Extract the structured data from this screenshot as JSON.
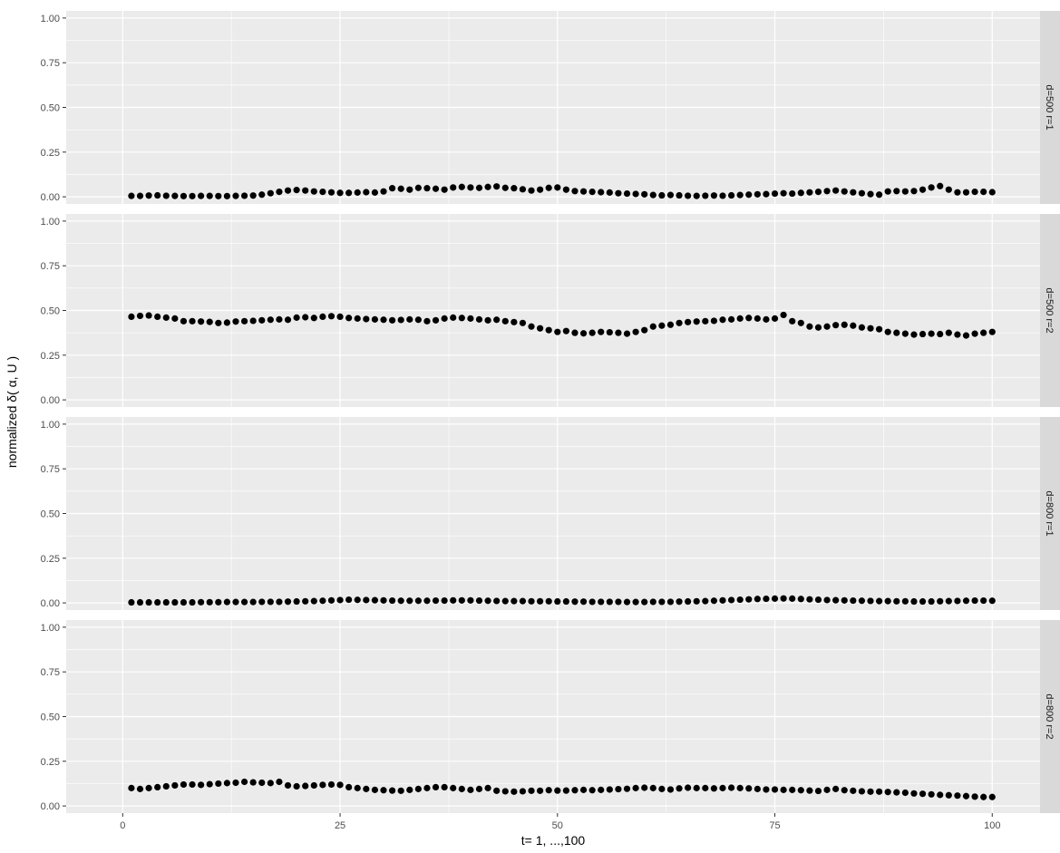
{
  "chart_data": {
    "type": "scatter",
    "xlabel": "t= 1, ...,100",
    "ylabel": "normalized δ( α, U )",
    "xlim": [
      -6.5,
      105.5
    ],
    "ylim": [
      -0.04,
      1.04
    ],
    "x_ticks": [
      0,
      25,
      50,
      75,
      100
    ],
    "x_tick_labels": [
      "0",
      "25",
      "50",
      "75",
      "100"
    ],
    "y_ticks": [
      0,
      0.25,
      0.5,
      0.75,
      1
    ],
    "y_tick_labels": [
      "0.00",
      "0.25",
      "0.50",
      "0.75",
      "1.00"
    ],
    "grid": true,
    "facet_layout": "rows",
    "colors": {
      "panel_background": "#ebebeb",
      "grid": "#ffffff",
      "strip_background": "#d9d9d9",
      "points": "#000000"
    },
    "panels": [
      {
        "strip_label": "d=500 r=1",
        "y": [
          0.005,
          0.005,
          0.007,
          0.008,
          0.006,
          0.005,
          0.004,
          0.004,
          0.005,
          0.005,
          0.004,
          0.004,
          0.005,
          0.006,
          0.007,
          0.012,
          0.02,
          0.028,
          0.035,
          0.038,
          0.035,
          0.03,
          0.028,
          0.025,
          0.022,
          0.022,
          0.024,
          0.026,
          0.024,
          0.03,
          0.048,
          0.045,
          0.04,
          0.05,
          0.048,
          0.045,
          0.04,
          0.052,
          0.055,
          0.052,
          0.05,
          0.055,
          0.058,
          0.05,
          0.048,
          0.042,
          0.035,
          0.04,
          0.05,
          0.052,
          0.04,
          0.032,
          0.03,
          0.028,
          0.026,
          0.024,
          0.02,
          0.018,
          0.016,
          0.014,
          0.01,
          0.008,
          0.01,
          0.008,
          0.006,
          0.005,
          0.006,
          0.007,
          0.006,
          0.008,
          0.01,
          0.012,
          0.014,
          0.015,
          0.018,
          0.02,
          0.018,
          0.022,
          0.025,
          0.028,
          0.032,
          0.035,
          0.03,
          0.025,
          0.02,
          0.015,
          0.012,
          0.03,
          0.032,
          0.03,
          0.032,
          0.04,
          0.052,
          0.06,
          0.04,
          0.025,
          0.025,
          0.028,
          0.028,
          0.026
        ]
      },
      {
        "strip_label": "d=500 r=2",
        "y": [
          0.465,
          0.47,
          0.472,
          0.465,
          0.46,
          0.455,
          0.44,
          0.44,
          0.438,
          0.436,
          0.43,
          0.432,
          0.438,
          0.44,
          0.442,
          0.445,
          0.448,
          0.45,
          0.448,
          0.46,
          0.462,
          0.458,
          0.465,
          0.468,
          0.465,
          0.458,
          0.455,
          0.452,
          0.45,
          0.448,
          0.445,
          0.447,
          0.45,
          0.448,
          0.44,
          0.445,
          0.455,
          0.46,
          0.458,
          0.455,
          0.45,
          0.445,
          0.448,
          0.44,
          0.435,
          0.43,
          0.41,
          0.4,
          0.39,
          0.38,
          0.385,
          0.375,
          0.372,
          0.375,
          0.38,
          0.378,
          0.375,
          0.37,
          0.38,
          0.39,
          0.41,
          0.415,
          0.42,
          0.43,
          0.435,
          0.438,
          0.44,
          0.442,
          0.448,
          0.45,
          0.455,
          0.458,
          0.455,
          0.45,
          0.455,
          0.475,
          0.44,
          0.43,
          0.41,
          0.405,
          0.41,
          0.418,
          0.42,
          0.415,
          0.405,
          0.4,
          0.395,
          0.38,
          0.375,
          0.37,
          0.365,
          0.368,
          0.37,
          0.368,
          0.375,
          0.365,
          0.36,
          0.37,
          0.375,
          0.38
        ]
      },
      {
        "strip_label": "d=800 r=1",
        "y": [
          0.003,
          0.003,
          0.003,
          0.003,
          0.003,
          0.003,
          0.003,
          0.003,
          0.004,
          0.004,
          0.004,
          0.005,
          0.005,
          0.005,
          0.005,
          0.006,
          0.006,
          0.006,
          0.007,
          0.008,
          0.009,
          0.01,
          0.012,
          0.014,
          0.016,
          0.018,
          0.017,
          0.016,
          0.015,
          0.014,
          0.013,
          0.012,
          0.012,
          0.012,
          0.012,
          0.013,
          0.013,
          0.014,
          0.014,
          0.014,
          0.013,
          0.012,
          0.011,
          0.01,
          0.01,
          0.01,
          0.009,
          0.009,
          0.009,
          0.008,
          0.008,
          0.007,
          0.007,
          0.006,
          0.006,
          0.006,
          0.006,
          0.005,
          0.005,
          0.005,
          0.006,
          0.006,
          0.006,
          0.007,
          0.008,
          0.009,
          0.01,
          0.012,
          0.014,
          0.016,
          0.018,
          0.02,
          0.022,
          0.023,
          0.024,
          0.025,
          0.024,
          0.022,
          0.02,
          0.018,
          0.016,
          0.015,
          0.014,
          0.013,
          0.012,
          0.011,
          0.01,
          0.01,
          0.009,
          0.009,
          0.008,
          0.008,
          0.008,
          0.009,
          0.01,
          0.011,
          0.012,
          0.013,
          0.013,
          0.012
        ]
      },
      {
        "strip_label": "d=800 r=2",
        "y": [
          0.1,
          0.095,
          0.1,
          0.105,
          0.11,
          0.115,
          0.12,
          0.12,
          0.118,
          0.122,
          0.125,
          0.128,
          0.13,
          0.135,
          0.132,
          0.13,
          0.128,
          0.135,
          0.115,
          0.11,
          0.112,
          0.115,
          0.118,
          0.12,
          0.118,
          0.105,
          0.1,
          0.095,
          0.09,
          0.088,
          0.086,
          0.085,
          0.09,
          0.095,
          0.1,
          0.105,
          0.105,
          0.1,
          0.095,
          0.09,
          0.095,
          0.1,
          0.085,
          0.082,
          0.08,
          0.082,
          0.085,
          0.085,
          0.088,
          0.086,
          0.086,
          0.088,
          0.09,
          0.088,
          0.09,
          0.092,
          0.094,
          0.096,
          0.1,
          0.102,
          0.1,
          0.095,
          0.092,
          0.098,
          0.102,
          0.1,
          0.1,
          0.098,
          0.1,
          0.102,
          0.1,
          0.098,
          0.095,
          0.092,
          0.092,
          0.09,
          0.09,
          0.088,
          0.086,
          0.084,
          0.09,
          0.095,
          0.088,
          0.085,
          0.082,
          0.08,
          0.08,
          0.078,
          0.076,
          0.074,
          0.07,
          0.068,
          0.065,
          0.062,
          0.06,
          0.058,
          0.055,
          0.052,
          0.05,
          0.05
        ]
      }
    ]
  }
}
